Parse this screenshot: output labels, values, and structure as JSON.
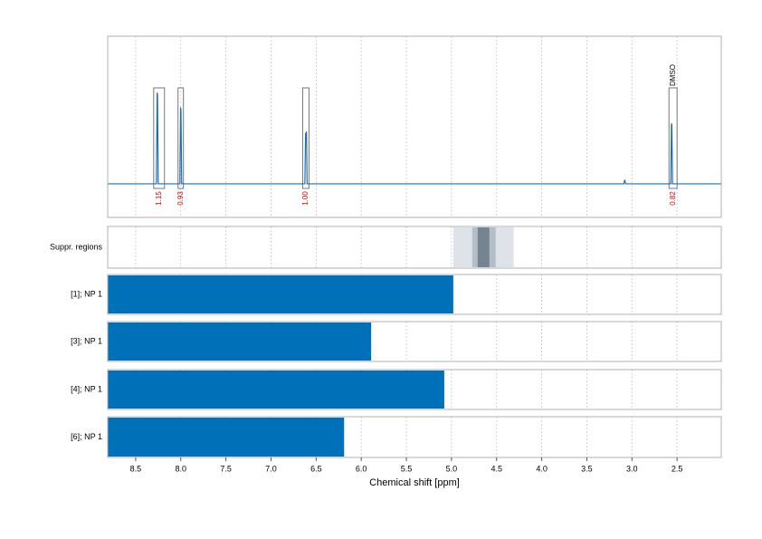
{
  "chart_data": {
    "type": "nmr",
    "x_label": "Chemical shift [ppm]",
    "xlim": [
      8.81,
      2.01
    ],
    "xticks": [
      8.5,
      {
        "value": 8,
        "label": "8.0"
      },
      7.5,
      {
        "value": 7,
        "label": "7.0"
      },
      6.5,
      {
        "value": 6,
        "label": "6.0"
      },
      5.5,
      {
        "value": 5,
        "label": "5.0"
      },
      4.5,
      {
        "value": 4,
        "label": "4.0"
      },
      3.5,
      {
        "value": 3,
        "label": "3.0"
      },
      2.5
    ],
    "grid": true,
    "spectrum": {
      "color": "#1f6fb0",
      "ylim": [
        -0.25,
        1.1
      ],
      "x": [
        8.81,
        8.27,
        8.262,
        8.258,
        8.25,
        8.01,
        8.002,
        7.998,
        7.99,
        6.625,
        6.617,
        6.612,
        6.607,
        6.6,
        3.09,
        3.08,
        3.07,
        2.57,
        2.562,
        2.558,
        2.55,
        2.01
      ],
      "y": [
        0,
        0,
        0.68,
        0.66,
        0,
        0,
        0.57,
        0.55,
        0,
        0,
        0.38,
        0.33,
        0.39,
        0,
        0,
        0.03,
        0,
        0,
        0.45,
        0.44,
        0,
        0
      ]
    },
    "peaks": [
      {
        "from": 8.3,
        "to": 8.18,
        "label": "1.15"
      },
      {
        "from": 8.03,
        "to": 7.97,
        "label": "0.93"
      },
      {
        "from": 6.65,
        "to": 6.58,
        "label": "1.00"
      },
      {
        "from": 2.59,
        "to": 2.5,
        "label": "0.82",
        "annotation": "DMSO"
      }
    ],
    "suppression": {
      "label": "Suppr. regions",
      "regions": [
        {
          "from": 4.98,
          "to": 4.31,
          "color": "#dde3e8"
        },
        {
          "from": 4.77,
          "to": 4.51,
          "color": "#b3bec7"
        },
        {
          "from": 4.71,
          "to": 4.58,
          "color": "#748591"
        }
      ]
    },
    "bars": {
      "color": "#0070b8",
      "categories": [
        "[1]; NP 1",
        "[3]; NP 1",
        "[4]; NP 1",
        "[6]; NP 1"
      ],
      "values": [
        4.98,
        5.89,
        5.08,
        6.19
      ]
    }
  }
}
